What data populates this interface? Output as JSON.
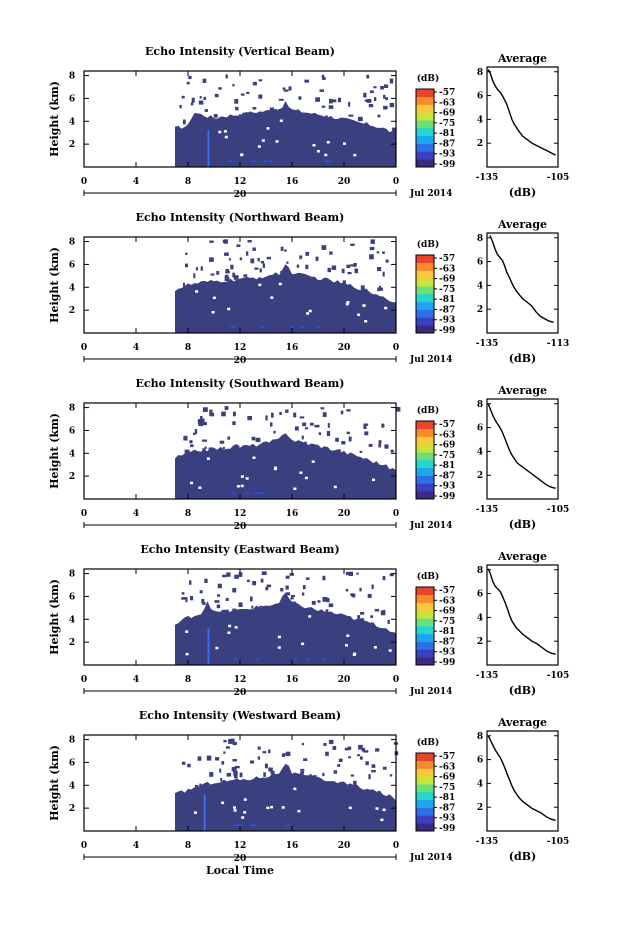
{
  "figure": {
    "bottom_xlabel": "Local Time"
  },
  "colors": {
    "fill_dark": "#3a3f80",
    "fill_mid": "#3c4a9a",
    "streak": "#3b6ff0",
    "speck": "#2a4fd2",
    "colorbar": [
      "#3a2a80",
      "#3a40c0",
      "#2c6fe8",
      "#1aa7f0",
      "#25d5cf",
      "#6be07a",
      "#c9e43a",
      "#f8c93a",
      "#f88c2a",
      "#e8452a"
    ]
  },
  "chart_data": [
    {
      "type": "heatmap",
      "title": "Echo Intensity (Vertical Beam)",
      "ylabel": "Height (km)",
      "xticks": [
        "0",
        "4",
        "8",
        "12",
        "16",
        "20",
        "0"
      ],
      "yticks": [
        "2",
        "4",
        "6",
        "8"
      ],
      "date_day": "20",
      "date_label": "Jul 2014",
      "xlim": [
        0,
        24
      ],
      "ylim": [
        0,
        8.4
      ],
      "data_start_hour": 7,
      "top_hours": [
        7,
        8,
        8.4,
        9,
        10,
        11,
        12,
        13,
        14,
        15,
        15.5,
        16,
        17,
        18,
        19,
        20,
        21,
        22,
        23,
        24
      ],
      "top_heights": [
        3.4,
        3.6,
        4.8,
        4.6,
        4.3,
        4.5,
        4.6,
        4.8,
        4.9,
        5.1,
        5.6,
        5.0,
        4.8,
        4.6,
        4.4,
        4.2,
        3.9,
        3.7,
        3.4,
        2.9
      ],
      "streak_hours": [
        9.5
      ],
      "colorbar_unit": "(dB)",
      "colorbar_ticks": [
        "-57",
        "-63",
        "-69",
        "-75",
        "-81",
        "-87",
        "-93",
        "-99"
      ],
      "profile": {
        "title": "Average",
        "xlabel": "(dB)",
        "xticks": [
          "-135",
          "-105"
        ],
        "yticks": [
          "2",
          "4",
          "6",
          "8"
        ],
        "xlim": [
          -135,
          -105
        ],
        "ylim": [
          0,
          8.4
        ],
        "x": [
          -134.5,
          -133.5,
          -132.5,
          -131.5,
          -130.5,
          -129.5,
          -128.5,
          -127.5,
          -126.5,
          -125.5,
          -124.5,
          -123.5,
          -122.5,
          -121.5,
          -120,
          -118,
          -116,
          -114,
          -112,
          -110,
          -108,
          -106
        ],
        "y": [
          8.2,
          7.8,
          7.2,
          6.8,
          6.5,
          6.3,
          6.0,
          5.6,
          5.2,
          4.6,
          4.0,
          3.6,
          3.3,
          3.0,
          2.6,
          2.3,
          2.0,
          1.8,
          1.6,
          1.4,
          1.2,
          1.0
        ]
      }
    },
    {
      "type": "heatmap",
      "title": "Echo Intensity (Northward Beam)",
      "ylabel": "Height (km)",
      "xticks": [
        "0",
        "4",
        "8",
        "12",
        "16",
        "20",
        "0"
      ],
      "yticks": [
        "2",
        "4",
        "6",
        "8"
      ],
      "date_day": "20",
      "date_label": "Jul 2014",
      "xlim": [
        0,
        24
      ],
      "ylim": [
        0,
        8.4
      ],
      "data_start_hour": 7,
      "top_hours": [
        7,
        8,
        9,
        10,
        11,
        12,
        13,
        14,
        15,
        15.5,
        16,
        17,
        18,
        19,
        20,
        21,
        22,
        23,
        24
      ],
      "top_heights": [
        3.8,
        4.2,
        4.4,
        4.5,
        4.6,
        4.7,
        4.8,
        5.0,
        5.2,
        6.0,
        5.3,
        5.0,
        4.8,
        4.6,
        4.3,
        4.0,
        3.6,
        3.2,
        2.6
      ],
      "streak_hours": [],
      "colorbar_unit": "(dB)",
      "colorbar_ticks": [
        "-57",
        "-63",
        "-69",
        "-75",
        "-81",
        "-87",
        "-93",
        "-99"
      ],
      "profile": {
        "title": "Average",
        "xlabel": "(dB)",
        "xticks": [
          "-135",
          "-113"
        ],
        "yticks": [
          "2",
          "4",
          "6",
          "8"
        ],
        "xlim": [
          -137,
          -113
        ],
        "ylim": [
          0,
          8.4
        ],
        "x": [
          -136,
          -135,
          -134.2,
          -133.5,
          -132.5,
          -131.8,
          -131,
          -130.3,
          -129.5,
          -128.8,
          -128,
          -127,
          -126,
          -125,
          -123.5,
          -122,
          -120.5,
          -119,
          -117.5,
          -116,
          -114.5
        ],
        "y": [
          8.2,
          7.6,
          7.0,
          6.6,
          6.3,
          6.1,
          5.6,
          5.1,
          4.7,
          4.3,
          3.9,
          3.5,
          3.2,
          2.9,
          2.6,
          2.3,
          1.8,
          1.4,
          1.2,
          1.0,
          0.9
        ]
      }
    },
    {
      "type": "heatmap",
      "title": "Echo Intensity (Southward Beam)",
      "ylabel": "Height (km)",
      "xticks": [
        "0",
        "4",
        "8",
        "12",
        "16",
        "20",
        "0"
      ],
      "yticks": [
        "2",
        "4",
        "6",
        "8"
      ],
      "date_day": "20",
      "date_label": "Jul 2014",
      "xlim": [
        0,
        24
      ],
      "ylim": [
        0,
        8.4
      ],
      "data_start_hour": 7,
      "top_hours": [
        7,
        8,
        9,
        10,
        11,
        12,
        13,
        14,
        15,
        15.5,
        16,
        17,
        18,
        19,
        20,
        21,
        22,
        23,
        24
      ],
      "top_heights": [
        3.6,
        4.0,
        4.3,
        4.4,
        4.5,
        4.6,
        4.7,
        4.9,
        5.2,
        5.9,
        5.2,
        4.9,
        4.7,
        4.4,
        4.1,
        3.8,
        3.4,
        3.0,
        2.5
      ],
      "streak_hours": [],
      "colorbar_unit": "(dB)",
      "colorbar_ticks": [
        "-57",
        "-63",
        "-69",
        "-75",
        "-81",
        "-87",
        "-93",
        "-99"
      ],
      "profile": {
        "title": "Average",
        "xlabel": "(dB)",
        "xticks": [
          "-135",
          "-105"
        ],
        "yticks": [
          "2",
          "4",
          "6",
          "8"
        ],
        "xlim": [
          -135,
          -105
        ],
        "ylim": [
          0,
          8.4
        ],
        "x": [
          -134.5,
          -133.5,
          -132.5,
          -131.5,
          -130.5,
          -129.5,
          -128.5,
          -127.5,
          -126.5,
          -125.5,
          -124.5,
          -123.5,
          -122.5,
          -121.5,
          -120,
          -118,
          -116,
          -114,
          -112,
          -110,
          -108,
          -106
        ],
        "y": [
          8.0,
          7.5,
          7.0,
          6.6,
          6.3,
          6.0,
          5.6,
          5.1,
          4.6,
          4.1,
          3.7,
          3.4,
          3.1,
          2.9,
          2.7,
          2.4,
          2.1,
          1.8,
          1.5,
          1.2,
          1.0,
          0.9
        ]
      }
    },
    {
      "type": "heatmap",
      "title": "Echo Intensity (Eastward Beam)",
      "ylabel": "Height (km)",
      "xticks": [
        "0",
        "4",
        "8",
        "12",
        "16",
        "20",
        "0"
      ],
      "yticks": [
        "2",
        "4",
        "6",
        "8"
      ],
      "date_day": "20",
      "date_label": "Jul 2014",
      "xlim": [
        0,
        24
      ],
      "ylim": [
        0,
        8.4
      ],
      "data_start_hour": 7,
      "top_hours": [
        7,
        8,
        9,
        9.5,
        10,
        11,
        12,
        13,
        14,
        15,
        15.5,
        16,
        17,
        18,
        19,
        20,
        21,
        22,
        23,
        24
      ],
      "top_heights": [
        3.5,
        4.2,
        4.5,
        5.6,
        4.6,
        4.7,
        4.8,
        5.0,
        5.2,
        5.4,
        6.3,
        5.4,
        5.1,
        4.8,
        4.6,
        4.3,
        4.0,
        3.7,
        3.3,
        2.9
      ],
      "streak_hours": [
        9.5
      ],
      "colorbar_unit": "(dB)",
      "colorbar_ticks": [
        "-57",
        "-63",
        "-69",
        "-75",
        "-81",
        "-87",
        "-93",
        "-99"
      ],
      "profile": {
        "title": "Average",
        "xlabel": "(dB)",
        "xticks": [
          "-135",
          "-105"
        ],
        "yticks": [
          "2",
          "4",
          "6",
          "8"
        ],
        "xlim": [
          -135,
          -105
        ],
        "ylim": [
          0,
          8.4
        ],
        "x": [
          -134.5,
          -133.5,
          -132.5,
          -131.5,
          -130.5,
          -129.5,
          -128.5,
          -127.5,
          -126.5,
          -125.5,
          -124.5,
          -123.5,
          -122.5,
          -121.5,
          -120,
          -118,
          -116,
          -114,
          -112,
          -110,
          -108,
          -106
        ],
        "y": [
          8.1,
          7.6,
          7.0,
          6.6,
          6.4,
          6.2,
          5.8,
          5.3,
          4.8,
          4.2,
          3.7,
          3.4,
          3.1,
          2.9,
          2.6,
          2.3,
          2.0,
          1.8,
          1.5,
          1.2,
          1.0,
          0.9
        ]
      }
    },
    {
      "type": "heatmap",
      "title": "Echo Intensity (Westward Beam)",
      "ylabel": "Height (km)",
      "xticks": [
        "0",
        "4",
        "8",
        "12",
        "16",
        "20",
        "0"
      ],
      "yticks": [
        "2",
        "4",
        "6",
        "8"
      ],
      "date_day": "20",
      "date_label": "Jul 2014",
      "xlim": [
        0,
        24
      ],
      "ylim": [
        0,
        8.4
      ],
      "data_start_hour": 7,
      "top_hours": [
        7,
        8,
        9,
        10,
        11,
        12,
        13,
        14,
        15,
        15.5,
        16,
        17,
        18,
        19,
        20,
        21,
        22,
        23,
        24
      ],
      "top_heights": [
        3.2,
        3.6,
        4.0,
        4.3,
        4.4,
        4.5,
        4.6,
        4.8,
        5.1,
        6.0,
        5.1,
        4.8,
        4.6,
        4.4,
        4.2,
        3.9,
        3.6,
        3.3,
        2.8
      ],
      "streak_hours": [
        9.2
      ],
      "colorbar_unit": "(dB)",
      "colorbar_ticks": [
        "-57",
        "-63",
        "-69",
        "-75",
        "-81",
        "-87",
        "-93",
        "-99"
      ],
      "profile": {
        "title": "Average",
        "xlabel": "(dB)",
        "xticks": [
          "-135",
          "-105"
        ],
        "yticks": [
          "2",
          "4",
          "6",
          "8"
        ],
        "xlim": [
          -135,
          -105
        ],
        "ylim": [
          0,
          8.4
        ],
        "x": [
          -134.5,
          -133.5,
          -132.5,
          -131.5,
          -130.5,
          -129.5,
          -128.5,
          -127.5,
          -126.5,
          -125.5,
          -124.5,
          -123.5,
          -122.5,
          -121.5,
          -120,
          -118,
          -116,
          -114,
          -112,
          -110,
          -108,
          -106
        ],
        "y": [
          8.0,
          7.6,
          7.2,
          6.8,
          6.5,
          6.2,
          5.8,
          5.3,
          4.8,
          4.3,
          3.8,
          3.4,
          3.1,
          2.8,
          2.5,
          2.2,
          1.9,
          1.7,
          1.5,
          1.2,
          1.0,
          0.9
        ]
      }
    }
  ]
}
